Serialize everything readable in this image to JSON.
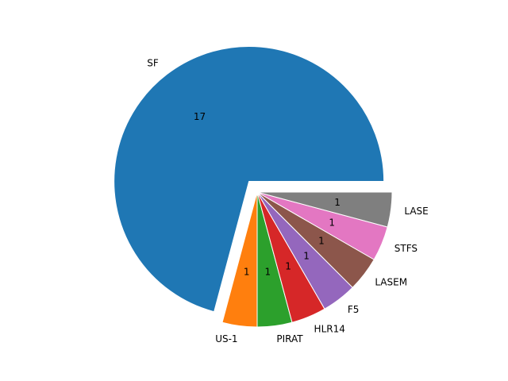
{
  "chart_data": {
    "type": "pie",
    "slices": [
      {
        "label": "SF",
        "value": 17,
        "value_label": "17",
        "color": "#1f77b4",
        "exploded": true
      },
      {
        "label": "US-1",
        "value": 1,
        "value_label": "1",
        "color": "#ff7f0e",
        "exploded": false
      },
      {
        "label": "PIRAT",
        "value": 1,
        "value_label": "1",
        "color": "#2ca02c",
        "exploded": false
      },
      {
        "label": "HLR14",
        "value": 1,
        "value_label": "1",
        "color": "#d62728",
        "exploded": false
      },
      {
        "label": "F5",
        "value": 1,
        "value_label": "1",
        "color": "#9467bd",
        "exploded": false
      },
      {
        "label": "LASEM",
        "value": 1,
        "value_label": "1",
        "color": "#8c564b",
        "exploded": false
      },
      {
        "label": "STFS",
        "value": 1,
        "value_label": "1",
        "color": "#e377c2",
        "exploded": false
      },
      {
        "label": "LASE",
        "value": 1,
        "value_label": "1",
        "color": "#7f7f7f",
        "exploded": false
      }
    ],
    "start_angle": 0,
    "direction": "counterclockwise",
    "edge_color": "#ffffff"
  }
}
